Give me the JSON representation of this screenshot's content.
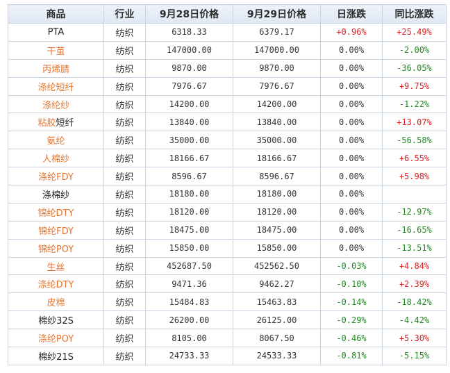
{
  "header": {
    "product": "商品",
    "industry": "行业",
    "price_sep28": "9月28日价格",
    "price_sep29": "9月29日价格",
    "daily_change": "日涨跌",
    "yoy_change": "同比涨跌"
  },
  "colors": {
    "up": "#e02020",
    "down": "#1f8a1f",
    "link": "#e8742f"
  },
  "rows": [
    {
      "name": "PTA",
      "link": false,
      "industry": "纺织",
      "p28": "6318.33",
      "p29": "6379.17",
      "daily": "+0.96%",
      "daily_dir": "up",
      "yoy": "+25.49%",
      "yoy_dir": "up"
    },
    {
      "name": "干茧",
      "link": true,
      "industry": "纺织",
      "p28": "147000.00",
      "p29": "147000.00",
      "daily": "0.00%",
      "daily_dir": "flat",
      "yoy": "-2.00%",
      "yoy_dir": "down"
    },
    {
      "name": "丙烯腈",
      "link": true,
      "industry": "纺织",
      "p28": "9870.00",
      "p29": "9870.00",
      "daily": "0.00%",
      "daily_dir": "flat",
      "yoy": "-36.05%",
      "yoy_dir": "down"
    },
    {
      "name": "涤纶短纤",
      "link": true,
      "industry": "纺织",
      "p28": "7976.67",
      "p29": "7976.67",
      "daily": "0.00%",
      "daily_dir": "flat",
      "yoy": "+9.75%",
      "yoy_dir": "up"
    },
    {
      "name": "涤纶纱",
      "link": true,
      "industry": "纺织",
      "p28": "14200.00",
      "p29": "14200.00",
      "daily": "0.00%",
      "daily_dir": "flat",
      "yoy": "-1.22%",
      "yoy_dir": "down"
    },
    {
      "name_link": "粘胶",
      "name_plain": "短纤",
      "mixed": true,
      "industry": "纺织",
      "p28": "13840.00",
      "p29": "13840.00",
      "daily": "0.00%",
      "daily_dir": "flat",
      "yoy": "+13.07%",
      "yoy_dir": "up"
    },
    {
      "name": "氨纶",
      "link": true,
      "industry": "纺织",
      "p28": "35000.00",
      "p29": "35000.00",
      "daily": "0.00%",
      "daily_dir": "flat",
      "yoy": "-56.58%",
      "yoy_dir": "down"
    },
    {
      "name": "人棉纱",
      "link": true,
      "industry": "纺织",
      "p28": "18166.67",
      "p29": "18166.67",
      "daily": "0.00%",
      "daily_dir": "flat",
      "yoy": "+6.55%",
      "yoy_dir": "up"
    },
    {
      "name": "涤纶FDY",
      "link": true,
      "industry": "纺织",
      "p28": "8596.67",
      "p29": "8596.67",
      "daily": "0.00%",
      "daily_dir": "flat",
      "yoy": "+5.98%",
      "yoy_dir": "up"
    },
    {
      "name": "涤棉纱",
      "link": false,
      "industry": "纺织",
      "p28": "18180.00",
      "p29": "18180.00",
      "daily": "0.00%",
      "daily_dir": "flat",
      "yoy": "",
      "yoy_dir": "flat"
    },
    {
      "name": "锦纶DTY",
      "link": true,
      "industry": "纺织",
      "p28": "18120.00",
      "p29": "18120.00",
      "daily": "0.00%",
      "daily_dir": "flat",
      "yoy": "-12.97%",
      "yoy_dir": "down"
    },
    {
      "name": "锦纶FDY",
      "link": true,
      "industry": "纺织",
      "p28": "18475.00",
      "p29": "18475.00",
      "daily": "0.00%",
      "daily_dir": "flat",
      "yoy": "-16.65%",
      "yoy_dir": "down"
    },
    {
      "name": "锦纶POY",
      "link": true,
      "industry": "纺织",
      "p28": "15850.00",
      "p29": "15850.00",
      "daily": "0.00%",
      "daily_dir": "flat",
      "yoy": "-13.51%",
      "yoy_dir": "down"
    },
    {
      "name": "生丝",
      "link": true,
      "industry": "纺织",
      "p28": "452687.50",
      "p29": "452562.50",
      "daily": "-0.03%",
      "daily_dir": "down",
      "yoy": "+4.84%",
      "yoy_dir": "up"
    },
    {
      "name": "涤纶DTY",
      "link": true,
      "industry": "纺织",
      "p28": "9471.36",
      "p29": "9462.27",
      "daily": "-0.10%",
      "daily_dir": "down",
      "yoy": "+2.39%",
      "yoy_dir": "up"
    },
    {
      "name": "皮棉",
      "link": true,
      "industry": "纺织",
      "p28": "15484.83",
      "p29": "15463.83",
      "daily": "-0.14%",
      "daily_dir": "down",
      "yoy": "-18.42%",
      "yoy_dir": "down"
    },
    {
      "name": "棉纱32S",
      "link": false,
      "industry": "纺织",
      "p28": "26200.00",
      "p29": "26125.00",
      "daily": "-0.29%",
      "daily_dir": "down",
      "yoy": "-4.42%",
      "yoy_dir": "down"
    },
    {
      "name": "涤纶POY",
      "link": true,
      "industry": "纺织",
      "p28": "8105.00",
      "p29": "8067.50",
      "daily": "-0.46%",
      "daily_dir": "down",
      "yoy": "+5.30%",
      "yoy_dir": "up"
    },
    {
      "name": "棉纱21S",
      "link": false,
      "industry": "纺织",
      "p28": "24733.33",
      "p29": "24533.33",
      "daily": "-0.81%",
      "daily_dir": "down",
      "yoy": "-5.15%",
      "yoy_dir": "down"
    }
  ]
}
